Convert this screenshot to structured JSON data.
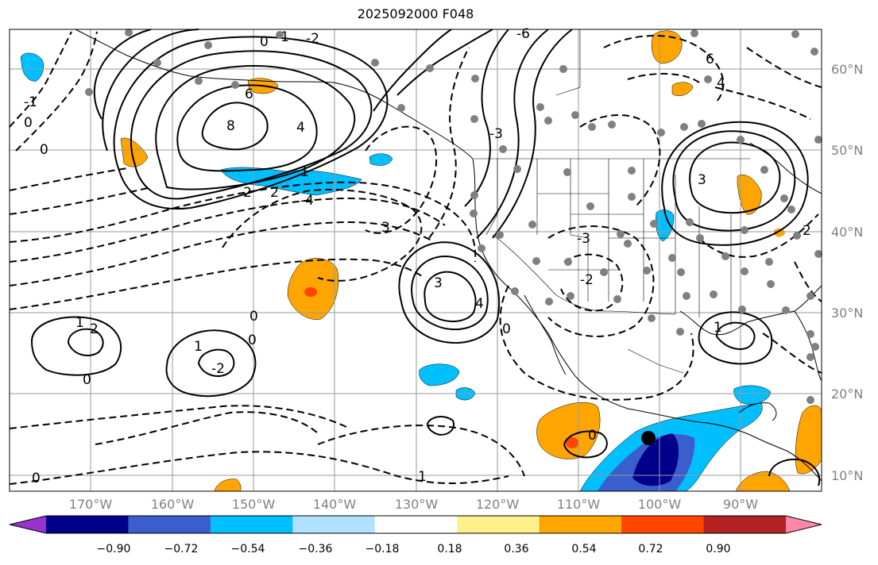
{
  "title": "2025092000 F048",
  "map": {
    "projection": "plate-carree",
    "lon_range": [
      -180,
      -80
    ],
    "lat_range": [
      8,
      65
    ],
    "grid": true,
    "lat_labels": [
      "60°N",
      "50°N",
      "40°N",
      "30°N",
      "20°N",
      "10°N"
    ],
    "lon_labels": [
      "170°W",
      "160°W",
      "150°W",
      "140°W",
      "130°W",
      "120°W",
      "110°W",
      "100°W",
      "90°W"
    ],
    "contour_labels": [
      "0",
      "-1",
      "-2",
      "6",
      "8",
      "4",
      "0",
      "1",
      "2",
      "3",
      "-4",
      "-3",
      "0",
      "3",
      "4",
      "-2",
      "-3",
      "0",
      "1",
      "2",
      "1",
      "-2",
      "0",
      "0",
      "1",
      "0",
      "-6",
      "6",
      "4",
      "3",
      "2",
      "1",
      "-1",
      "0",
      "-2",
      "0"
    ],
    "station_marker_color": "#808080",
    "storm_marker_color": "#000000"
  },
  "colorbar": {
    "colors": [
      "#9a32cd",
      "#00008b",
      "#3a5fcd",
      "#00bfff",
      "#b0e2ff",
      "#ffffff",
      "#fff08c",
      "#ffa500",
      "#ff4500",
      "#b22222",
      "#ff88aa"
    ],
    "tick_labels": [
      "−0.90",
      "−0.72",
      "−0.54",
      "−0.36",
      "−0.18",
      "0.18",
      "0.36",
      "0.54",
      "0.72",
      "0.90"
    ],
    "extend": "both"
  }
}
